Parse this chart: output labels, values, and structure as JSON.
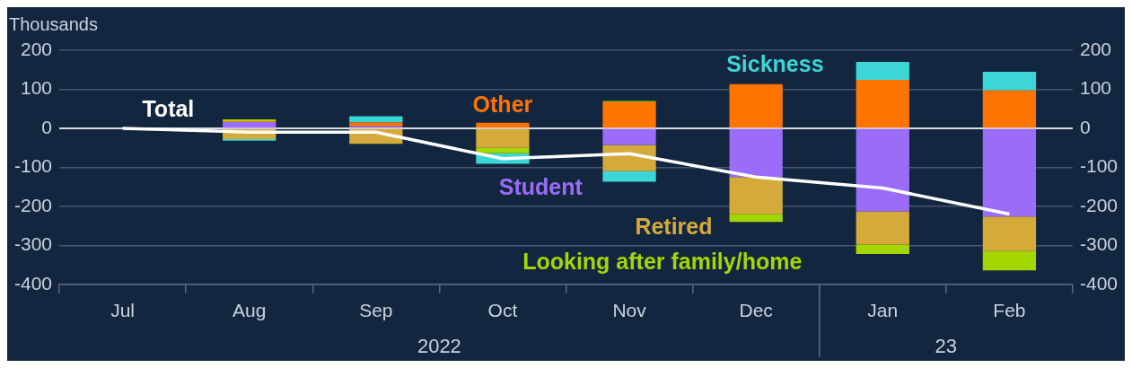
{
  "chart_data": {
    "type": "bar",
    "stacked": true,
    "ylabel": "Thousands",
    "categories": [
      "Jul",
      "Aug",
      "Sep",
      "Oct",
      "Nov",
      "Dec",
      "Jan",
      "Feb"
    ],
    "series": [
      {
        "name": "Student",
        "color": "#9b6cf7",
        "values": [
          0,
          16,
          5,
          0,
          -43,
          -125,
          -213,
          -226
        ]
      },
      {
        "name": "Other",
        "color": "#ff7300",
        "values": [
          0,
          2,
          10,
          14,
          67,
          113,
          124,
          97
        ]
      },
      {
        "name": "Retired",
        "color": "#d4ab3a",
        "values": [
          0,
          -28,
          -40,
          -50,
          -67,
          -94,
          -85,
          -89
        ]
      },
      {
        "name": "Looking after family/home",
        "color": "#a4d600",
        "values": [
          0,
          5,
          0,
          -14,
          3,
          -21,
          -24,
          -49
        ]
      },
      {
        "name": "Sickness",
        "color": "#3dd6d6",
        "values": [
          0,
          -4,
          16,
          -27,
          -27,
          0,
          46,
          48
        ]
      },
      {
        "name": "Total",
        "type": "line",
        "color": "#ffffff",
        "values": [
          0,
          -10,
          -10,
          -78,
          -65,
          -125,
          -153,
          -220
        ]
      }
    ],
    "ylim": [
      -400,
      200
    ],
    "yticks": [
      -400,
      -300,
      -200,
      -100,
      0,
      100,
      200
    ],
    "y2lim": [
      -400,
      200
    ],
    "y2ticks": [
      -400,
      -300,
      -200,
      -100,
      0,
      100,
      200
    ],
    "grid": "y",
    "legend": false,
    "marker": "none",
    "annotations": [
      "2022",
      "23"
    ]
  }
}
